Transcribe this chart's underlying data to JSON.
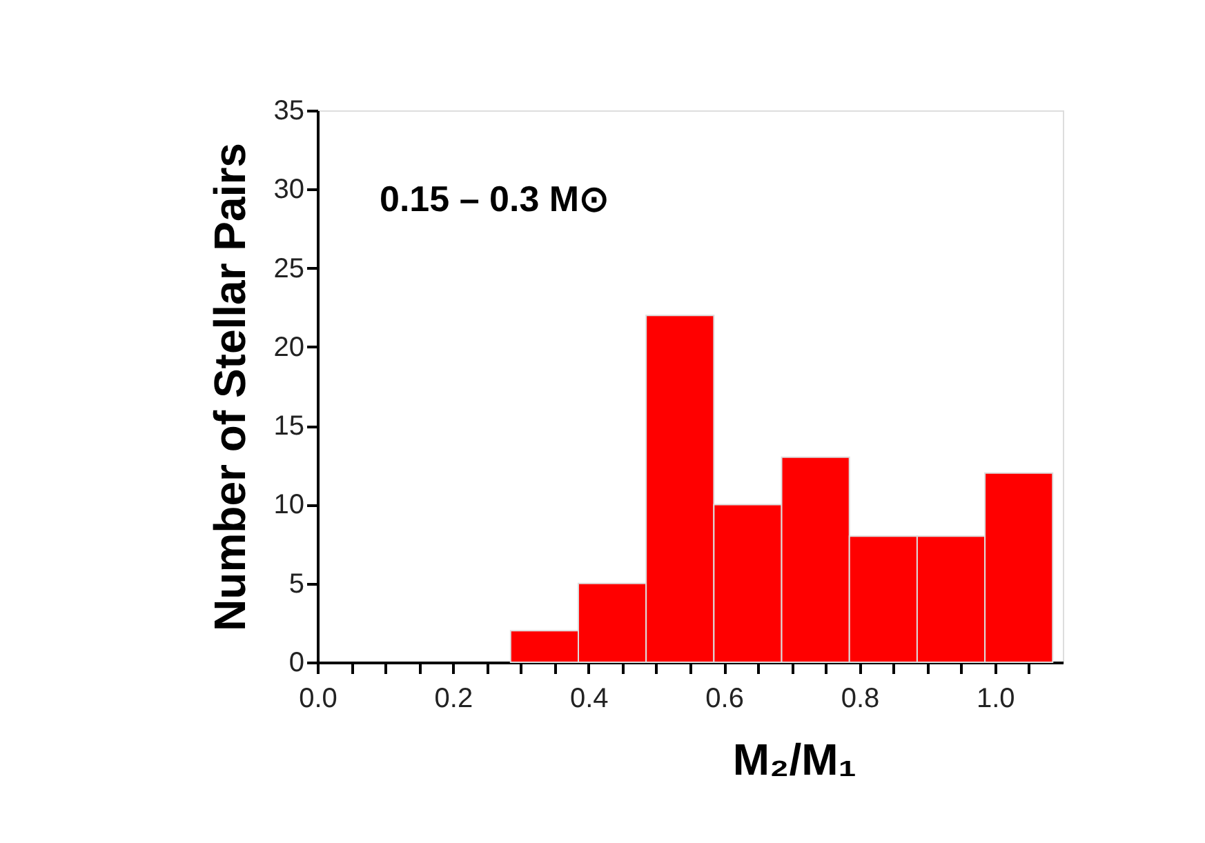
{
  "chart_data": {
    "type": "histogram",
    "bins": [
      0.285,
      0.385,
      0.485,
      0.585,
      0.685,
      0.785,
      0.885,
      0.985,
      1.085
    ],
    "values": [
      2,
      5,
      22,
      10,
      13,
      8,
      8,
      12
    ],
    "color": "#ff0000",
    "xlabel": "M₂/M₁",
    "ylabel": "Number of Stellar Pairs",
    "annotations": [
      "0.15 – 0.3 M⊙"
    ],
    "xlim": [
      0,
      1.1
    ],
    "xticks": [
      {
        "value": 0,
        "label": "0.0"
      },
      {
        "value": 0.05,
        "label": null
      },
      {
        "value": 0.1,
        "label": null
      },
      {
        "value": 0.15,
        "label": null
      },
      0.2,
      {
        "value": 0.25,
        "label": null
      },
      {
        "value": 0.3,
        "label": null
      },
      {
        "value": 0.35,
        "label": null
      },
      0.4,
      {
        "value": 0.45,
        "label": null
      },
      {
        "value": 0.5,
        "label": null
      },
      {
        "value": 0.55,
        "label": null
      },
      0.6,
      {
        "value": 0.65,
        "label": null
      },
      {
        "value": 0.7,
        "label": null
      },
      {
        "value": 0.75,
        "label": null
      },
      0.8,
      {
        "value": 0.85,
        "label": null
      },
      {
        "value": 0.9,
        "label": null
      },
      {
        "value": 0.95,
        "label": null
      },
      {
        "value": 1,
        "label": "1.0"
      },
      {
        "value": 1.05,
        "label": null
      }
    ],
    "ylim": [
      0,
      35
    ],
    "yticks": [
      0,
      5,
      10,
      15,
      20,
      25,
      30,
      35
    ],
    "grid": false
  }
}
